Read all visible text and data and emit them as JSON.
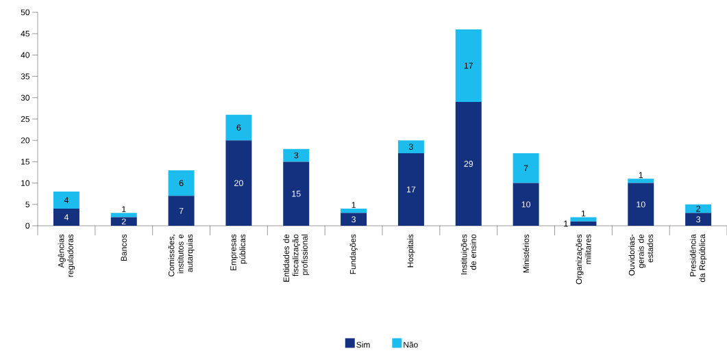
{
  "chart_data": {
    "type": "bar",
    "stacked": true,
    "categories": [
      "Agências reguladoras",
      "Bancos",
      "Comissões, institutos e autarquias",
      "Empresas públicas",
      "Entidades de fiscalização profissional",
      "Fundações",
      "Hospitais",
      "Instituições de ensino",
      "Ministérios",
      "Organizações militares",
      "Ouvidorias-gerais de estados",
      "Presidência da República"
    ],
    "series": [
      {
        "name": "Sim",
        "color": "#13317f",
        "values": [
          4,
          2,
          7,
          20,
          15,
          3,
          17,
          29,
          10,
          1,
          10,
          3
        ]
      },
      {
        "name": "Não",
        "color": "#1cbdee",
        "values": [
          4,
          1,
          6,
          6,
          3,
          1,
          3,
          17,
          7,
          1,
          1,
          2
        ]
      }
    ],
    "data_labels": true,
    "legend": "bottom",
    "ylim": [
      0,
      50
    ],
    "yticks": [
      0,
      5,
      10,
      15,
      20,
      25,
      30,
      35,
      40,
      45,
      50
    ]
  }
}
